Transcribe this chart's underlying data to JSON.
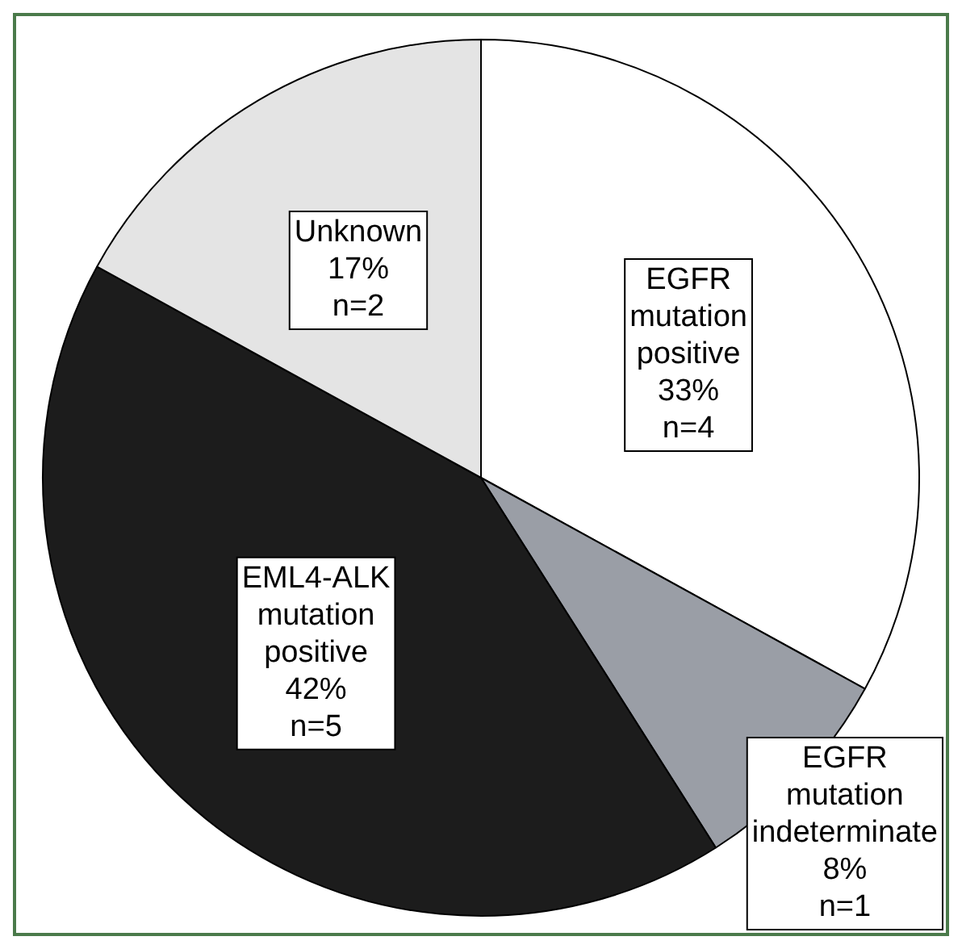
{
  "chart_data": {
    "type": "pie",
    "categories": [
      "EGFR mutation positive",
      "EGFR mutation indeterminate",
      "EML4-ALK mutation positive",
      "Unknown"
    ],
    "values": [
      33,
      8,
      42,
      17
    ],
    "colors": [
      "#ffffff",
      "#9a9ea6",
      "#1c1c1c",
      "#e4e4e4"
    ],
    "value_labels": [
      "33%\nn=4",
      "8%\nn=1",
      "42%\nn=5",
      "17%\nn=2"
    ],
    "legend": false
  }
}
